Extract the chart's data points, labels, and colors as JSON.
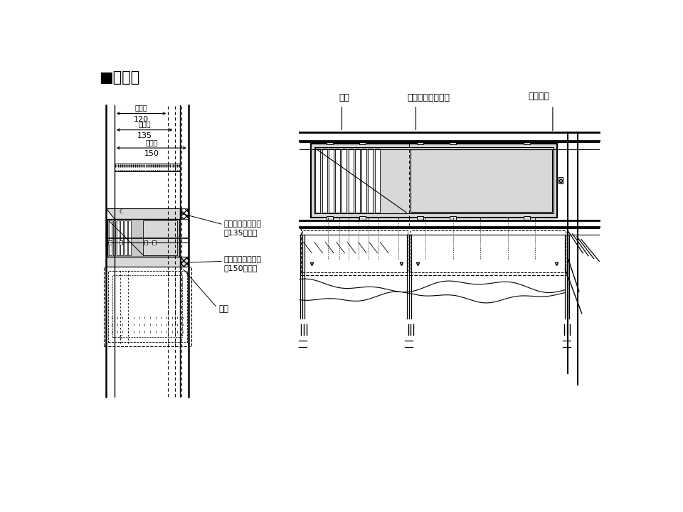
{
  "title": "■取付図",
  "bg_color": "#ffffff",
  "line_color": "#000000",
  "gray_fill": "#c8c8c8",
  "light_gray": "#d8d8d8",
  "dark_gray": "#aaaaaa",
  "labels": {
    "kiso_haba": "基礎幅",
    "120": "120",
    "135": "135",
    "150": "150",
    "styro_135": "スチロールパット\n（135幅用）",
    "styro_150": "スチロールパット\n（150幅用）",
    "kata_waku": "型枠",
    "tetsukin": "鉄筋",
    "yukashita": "床下換気ボックス",
    "kiso_tenten": "基礎天端"
  }
}
